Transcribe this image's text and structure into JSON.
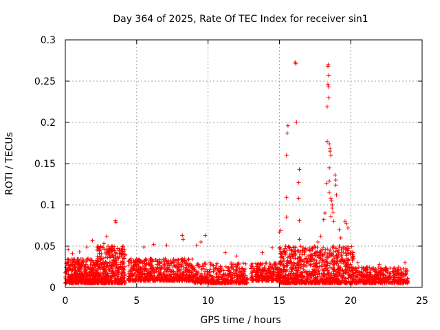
{
  "chart_data": {
    "type": "scatter",
    "title": "Day 364 of 2025, Rate Of TEC Index for receiver sin1",
    "xlabel": "GPS time / hours",
    "ylabel": "ROTI / TECUs",
    "xlim": [
      0,
      25
    ],
    "ylim": [
      0,
      0.3
    ],
    "xticks": [
      0,
      5,
      10,
      15,
      20,
      25
    ],
    "yticks": [
      0,
      0.05,
      0.1,
      0.15,
      0.2,
      0.25,
      0.3
    ],
    "xtick_labels": [
      "0",
      "5",
      "10",
      "15",
      "20",
      "25"
    ],
    "ytick_labels": [
      "0",
      "0.05",
      "0.1",
      "0.15",
      "0.2",
      "0.25",
      "0.3"
    ],
    "grid": true,
    "marker": "+",
    "color": "#ff0000",
    "series": [
      {
        "name": "sin1",
        "baseline_clusters": [
          {
            "x": [
              0.0,
              2.2
            ],
            "y": [
              0.005,
              0.035
            ],
            "n": 420
          },
          {
            "x": [
              2.2,
              4.2
            ],
            "y": [
              0.005,
              0.05
            ],
            "n": 420
          },
          {
            "x": [
              4.4,
              9.0
            ],
            "y": [
              0.008,
              0.035
            ],
            "n": 650
          },
          {
            "x": [
              9.0,
              12.8
            ],
            "y": [
              0.005,
              0.03
            ],
            "n": 420
          },
          {
            "x": [
              13.0,
              15.0
            ],
            "y": [
              0.008,
              0.03
            ],
            "n": 250
          },
          {
            "x": [
              15.0,
              17.5
            ],
            "y": [
              0.005,
              0.05
            ],
            "n": 450
          },
          {
            "x": [
              17.5,
              20.2
            ],
            "y": [
              0.005,
              0.05
            ],
            "n": 450
          },
          {
            "x": [
              20.2,
              24.0
            ],
            "y": [
              0.005,
              0.025
            ],
            "n": 420
          }
        ],
        "points": [
          {
            "x": 0.2,
            "y": 0.046
          },
          {
            "x": 0.5,
            "y": 0.041
          },
          {
            "x": 1.0,
            "y": 0.043
          },
          {
            "x": 1.5,
            "y": 0.049
          },
          {
            "x": 1.9,
            "y": 0.057
          },
          {
            "x": 2.7,
            "y": 0.053
          },
          {
            "x": 2.9,
            "y": 0.062
          },
          {
            "x": 3.1,
            "y": 0.047
          },
          {
            "x": 3.5,
            "y": 0.081
          },
          {
            "x": 3.55,
            "y": 0.079
          },
          {
            "x": 3.9,
            "y": 0.042
          },
          {
            "x": 5.5,
            "y": 0.049
          },
          {
            "x": 6.2,
            "y": 0.052
          },
          {
            "x": 7.1,
            "y": 0.051
          },
          {
            "x": 8.2,
            "y": 0.063
          },
          {
            "x": 8.25,
            "y": 0.058
          },
          {
            "x": 9.2,
            "y": 0.051
          },
          {
            "x": 9.5,
            "y": 0.055
          },
          {
            "x": 9.8,
            "y": 0.063
          },
          {
            "x": 11.2,
            "y": 0.042
          },
          {
            "x": 12.0,
            "y": 0.038
          },
          {
            "x": 13.8,
            "y": 0.042
          },
          {
            "x": 14.5,
            "y": 0.048
          },
          {
            "x": 15.0,
            "y": 0.067
          },
          {
            "x": 15.1,
            "y": 0.069
          },
          {
            "x": 15.4,
            "y": 0.047
          },
          {
            "x": 15.5,
            "y": 0.085
          },
          {
            "x": 15.5,
            "y": 0.109
          },
          {
            "x": 15.5,
            "y": 0.16
          },
          {
            "x": 15.55,
            "y": 0.187
          },
          {
            "x": 15.6,
            "y": 0.196
          },
          {
            "x": 16.1,
            "y": 0.273
          },
          {
            "x": 16.15,
            "y": 0.271
          },
          {
            "x": 16.2,
            "y": 0.2
          },
          {
            "x": 16.4,
            "y": 0.143
          },
          {
            "x": 16.35,
            "y": 0.127
          },
          {
            "x": 16.35,
            "y": 0.108
          },
          {
            "x": 16.4,
            "y": 0.081
          },
          {
            "x": 16.4,
            "y": 0.058
          },
          {
            "x": 17.2,
            "y": 0.045
          },
          {
            "x": 17.7,
            "y": 0.055
          },
          {
            "x": 17.9,
            "y": 0.062
          },
          {
            "x": 18.1,
            "y": 0.082
          },
          {
            "x": 18.2,
            "y": 0.09
          },
          {
            "x": 18.3,
            "y": 0.126
          },
          {
            "x": 18.35,
            "y": 0.177
          },
          {
            "x": 18.4,
            "y": 0.268
          },
          {
            "x": 18.42,
            "y": 0.27
          },
          {
            "x": 18.45,
            "y": 0.257
          },
          {
            "x": 18.4,
            "y": 0.246
          },
          {
            "x": 18.45,
            "y": 0.243
          },
          {
            "x": 18.45,
            "y": 0.23
          },
          {
            "x": 18.35,
            "y": 0.219
          },
          {
            "x": 18.5,
            "y": 0.174
          },
          {
            "x": 18.55,
            "y": 0.168
          },
          {
            "x": 18.55,
            "y": 0.165
          },
          {
            "x": 18.6,
            "y": 0.16
          },
          {
            "x": 18.5,
            "y": 0.145
          },
          {
            "x": 18.5,
            "y": 0.129
          },
          {
            "x": 18.5,
            "y": 0.115
          },
          {
            "x": 18.6,
            "y": 0.108
          },
          {
            "x": 18.65,
            "y": 0.105
          },
          {
            "x": 18.7,
            "y": 0.1
          },
          {
            "x": 18.7,
            "y": 0.096
          },
          {
            "x": 18.75,
            "y": 0.091
          },
          {
            "x": 18.6,
            "y": 0.086
          },
          {
            "x": 18.8,
            "y": 0.08
          },
          {
            "x": 18.9,
            "y": 0.136
          },
          {
            "x": 18.95,
            "y": 0.13
          },
          {
            "x": 18.95,
            "y": 0.124
          },
          {
            "x": 19.0,
            "y": 0.112
          },
          {
            "x": 19.2,
            "y": 0.07
          },
          {
            "x": 19.3,
            "y": 0.06
          },
          {
            "x": 19.6,
            "y": 0.08
          },
          {
            "x": 19.7,
            "y": 0.077
          },
          {
            "x": 19.8,
            "y": 0.072
          },
          {
            "x": 19.2,
            "y": 0.05
          },
          {
            "x": 20.5,
            "y": 0.03
          },
          {
            "x": 22.0,
            "y": 0.028
          },
          {
            "x": 23.8,
            "y": 0.03
          }
        ]
      }
    ]
  }
}
